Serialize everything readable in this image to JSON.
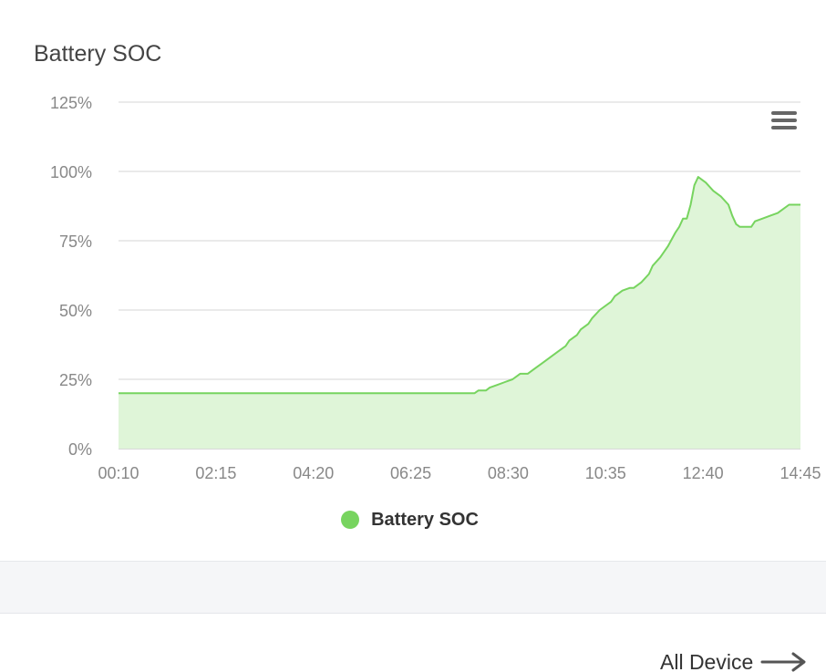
{
  "card": {
    "title": "Battery SOC"
  },
  "chart_data": {
    "type": "area",
    "title": "Battery SOC",
    "xlabel": "",
    "ylabel": "",
    "x_ticks": [
      "00:10",
      "02:15",
      "04:20",
      "06:25",
      "08:30",
      "10:35",
      "12:40",
      "14:45"
    ],
    "y_ticks": [
      "0%",
      "25%",
      "50%",
      "75%",
      "100%",
      "125%"
    ],
    "ylim": [
      0,
      125
    ],
    "x_range": [
      "00:10",
      "15:10"
    ],
    "grid": true,
    "legend_position": "bottom-center",
    "series": [
      {
        "name": "Battery SOC",
        "color": "#77d45f",
        "fill": "#dff5d8",
        "points": [
          [
            "00:10",
            20
          ],
          [
            "08:00",
            20
          ],
          [
            "08:05",
            21
          ],
          [
            "08:15",
            21
          ],
          [
            "08:20",
            22
          ],
          [
            "08:30",
            23
          ],
          [
            "08:40",
            24
          ],
          [
            "08:50",
            25
          ],
          [
            "09:00",
            27
          ],
          [
            "09:10",
            27
          ],
          [
            "09:20",
            29
          ],
          [
            "09:30",
            31
          ],
          [
            "09:40",
            33
          ],
          [
            "09:50",
            35
          ],
          [
            "10:00",
            37
          ],
          [
            "10:05",
            39
          ],
          [
            "10:15",
            41
          ],
          [
            "10:20",
            43
          ],
          [
            "10:30",
            45
          ],
          [
            "10:35",
            47
          ],
          [
            "10:45",
            50
          ],
          [
            "10:50",
            51
          ],
          [
            "11:00",
            53
          ],
          [
            "11:05",
            55
          ],
          [
            "11:15",
            57
          ],
          [
            "11:25",
            58
          ],
          [
            "11:30",
            58
          ],
          [
            "11:40",
            60
          ],
          [
            "11:50",
            63
          ],
          [
            "11:55",
            66
          ],
          [
            "12:05",
            69
          ],
          [
            "12:15",
            73
          ],
          [
            "12:25",
            78
          ],
          [
            "12:30",
            80
          ],
          [
            "12:35",
            83
          ],
          [
            "12:40",
            83
          ],
          [
            "12:45",
            88
          ],
          [
            "12:50",
            95
          ],
          [
            "12:55",
            98
          ],
          [
            "13:05",
            96
          ],
          [
            "13:15",
            93
          ],
          [
            "13:25",
            91
          ],
          [
            "13:35",
            88
          ],
          [
            "13:40",
            84
          ],
          [
            "13:45",
            81
          ],
          [
            "13:50",
            80
          ],
          [
            "14:05",
            80
          ],
          [
            "14:10",
            82
          ],
          [
            "14:20",
            83
          ],
          [
            "14:30",
            84
          ],
          [
            "14:40",
            85
          ],
          [
            "14:45",
            86
          ],
          [
            "14:55",
            88
          ],
          [
            "15:10",
            88
          ]
        ]
      }
    ]
  },
  "menu": {
    "icon": "hamburger-menu-icon"
  },
  "footer": {
    "all_device_label": "All Device",
    "arrow_icon": "arrow-right-icon"
  }
}
